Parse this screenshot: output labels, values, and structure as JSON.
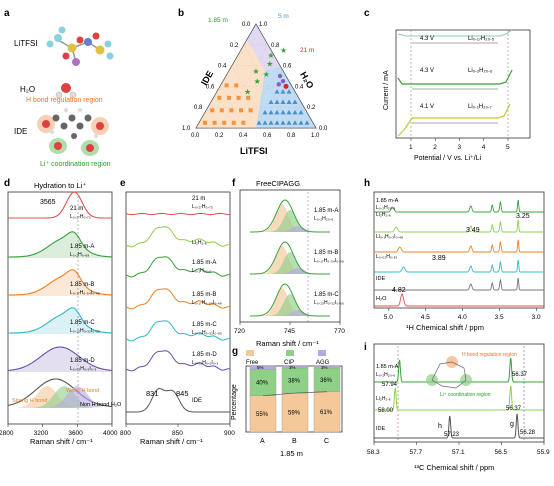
{
  "panels": {
    "a": "a",
    "b": "b",
    "c": "c",
    "d": "d",
    "e": "e",
    "f": "f",
    "g": "g",
    "h": "h",
    "i": "i"
  },
  "colors": {
    "red": "#e05050",
    "green": "#3aa03a",
    "green2": "#7fc850",
    "orange": "#f08020",
    "cyan": "#30b8c8",
    "purple": "#6a4fa8",
    "gray": "#777777",
    "olive": "#c8c830",
    "blue": "#4a90c8",
    "peach": "#f5c89a"
  },
  "panel_a": {
    "molecule_1": "LiTFSI",
    "molecule_2": "H₂O",
    "molecule_3": "IDE",
    "hbond_label": "H bond regulation region",
    "li_label": "Li⁺ coordination region"
  },
  "panel_b": {
    "axis_left": "IDE",
    "axis_right": "H₂O",
    "axis_bottom": "LiTFSI",
    "ticks": [
      "0.0",
      "0.2",
      "0.4",
      "0.6",
      "0.8",
      "1.0"
    ],
    "marker_185": "1.85 m",
    "marker_5": "5 m",
    "marker_21": "21 m"
  },
  "panel_c": {
    "ylabel": "Current / mA",
    "xlabel": "Potential / V vs. Li⁺/Li",
    "xticks": [
      "1",
      "2",
      "3",
      "4",
      "5"
    ],
    "windows": [
      {
        "v": "4.3 V",
        "formula": "Li₀.₁₇H₂₀.₅"
      },
      {
        "v": "4.3 V",
        "formula": "Li₀.₂H₂₀.₆"
      },
      {
        "v": "4.1 V",
        "formula": "Li₀.₁H₂₀.₇"
      }
    ]
  },
  "panel_d": {
    "title": "Hydration to Li⁺",
    "peak": "3565",
    "xlabel": "Raman shift / cm⁻¹",
    "xticks": [
      "2800",
      "3200",
      "3600",
      "4000"
    ],
    "traces": [
      {
        "label": "21 m",
        "formula": "L₀.₂₇H₀.₇₃"
      },
      {
        "label": "1.85 m-A",
        "formula": "L₀.₂H₀.₆₈"
      },
      {
        "label": "1.85 m-B",
        "formula": "L₀.₁₇H₀.₅₄I₀.₄₈"
      },
      {
        "label": "1.85 m-C",
        "formula": "L₀.₁₃H₀.₃₂I₀.₅₅"
      },
      {
        "label": "1.85 m-D",
        "formula": "L₀.₀₂H₀.₅I₀.₃"
      }
    ],
    "strong": "Strong H bond",
    "weak": "Weak H bond",
    "non": "Non H bond H₂O"
  },
  "panel_e": {
    "xlabel": "Raman shift / cm⁻¹",
    "xticks": [
      "800",
      "850",
      "900"
    ],
    "traces": [
      {
        "label": "21 m",
        "formula": "L₀.₂₇H₀.₇₃"
      },
      {
        "label": "",
        "formula": "Li₂H₂.₆"
      },
      {
        "label": "1.85 m-A",
        "formula": "L₀.₂H₂₀.₆"
      },
      {
        "label": "1.85 m-B",
        "formula": "L₀.₁₇H₀.₃₄I₀.₄₈"
      },
      {
        "label": "1.85 m-C",
        "formula": "L₀.₁₃H₀.₃₂I₀.₅₅"
      },
      {
        "label": "1.85 m-D",
        "formula": "L₀.₀₂H₀.₅I₀.₃"
      },
      {
        "label": "IDE",
        "formula": ""
      }
    ],
    "peak1": "831",
    "peak2": "845"
  },
  "panel_f": {
    "title": "FreeCIPAGG",
    "xlabel": "Raman shift / cm⁻¹",
    "xticks": [
      "720",
      "745",
      "770"
    ],
    "traces": [
      {
        "label": "1.85 m-A",
        "formula": "L₀.₂H₂₀.₆"
      },
      {
        "label": "1.85 m-B",
        "formula": "L₀.₁₇H₀.₃₄I₀.₄₉"
      },
      {
        "label": "1.85 m-C",
        "formula": "L₀.₁₃H₀.₃₂I₀.₅₅"
      }
    ]
  },
  "panel_g": {
    "legend": [
      "Free",
      "CIP",
      "AGG"
    ],
    "ylabel": "Percentage",
    "xlabel": "1.85 m",
    "categories": [
      "A",
      "B",
      "C"
    ],
    "free": [
      "55%",
      "59%",
      "61%"
    ],
    "cip": [
      "40%",
      "38%",
      "36%"
    ],
    "agg": [
      "5%",
      "3%",
      "3%"
    ]
  },
  "panel_h": {
    "xlabel": "¹H Chemical shift / ppm",
    "xticks": [
      "5.0",
      "4.5",
      "4.0",
      "3.5",
      "3.0"
    ],
    "traces": [
      {
        "label": "1.85 m-A",
        "formula": "L₀.₂H₂₀.₆"
      },
      {
        "label": "",
        "formula": "Li₂H₂.₆"
      },
      {
        "label": "",
        "formula": "Li₀.₁H₀.₃I₀.₄₈"
      },
      {
        "label": "",
        "formula": "L₀.₀₂H₀.₃₅"
      },
      {
        "label": "IDE",
        "formula": ""
      },
      {
        "label": "H₂O",
        "formula": ""
      }
    ],
    "p1": "3.25",
    "p2": "3.49",
    "p3": "3.89",
    "p4": "4.82"
  },
  "panel_i": {
    "xlabel": "¹³C Chemical shift / ppm",
    "xticks": [
      "58.3",
      "57.7",
      "57.1",
      "56.5",
      "55.9"
    ],
    "traces": [
      {
        "label": "1.85 m-A",
        "formula": "L₀.₂H₂₀.₆"
      },
      {
        "label": "",
        "formula": "Li₂H₂.₆"
      },
      {
        "label": "IDE",
        "formula": ""
      }
    ],
    "v1": "57.94",
    "v2": "56.37",
    "v3": "58.00",
    "v4": "56.37",
    "v5": "57.23",
    "v6": "56.28",
    "h_label": "h",
    "g_label": "g",
    "hbond": "H bond regulation region",
    "licoord": "Li⁺ coordination region"
  }
}
